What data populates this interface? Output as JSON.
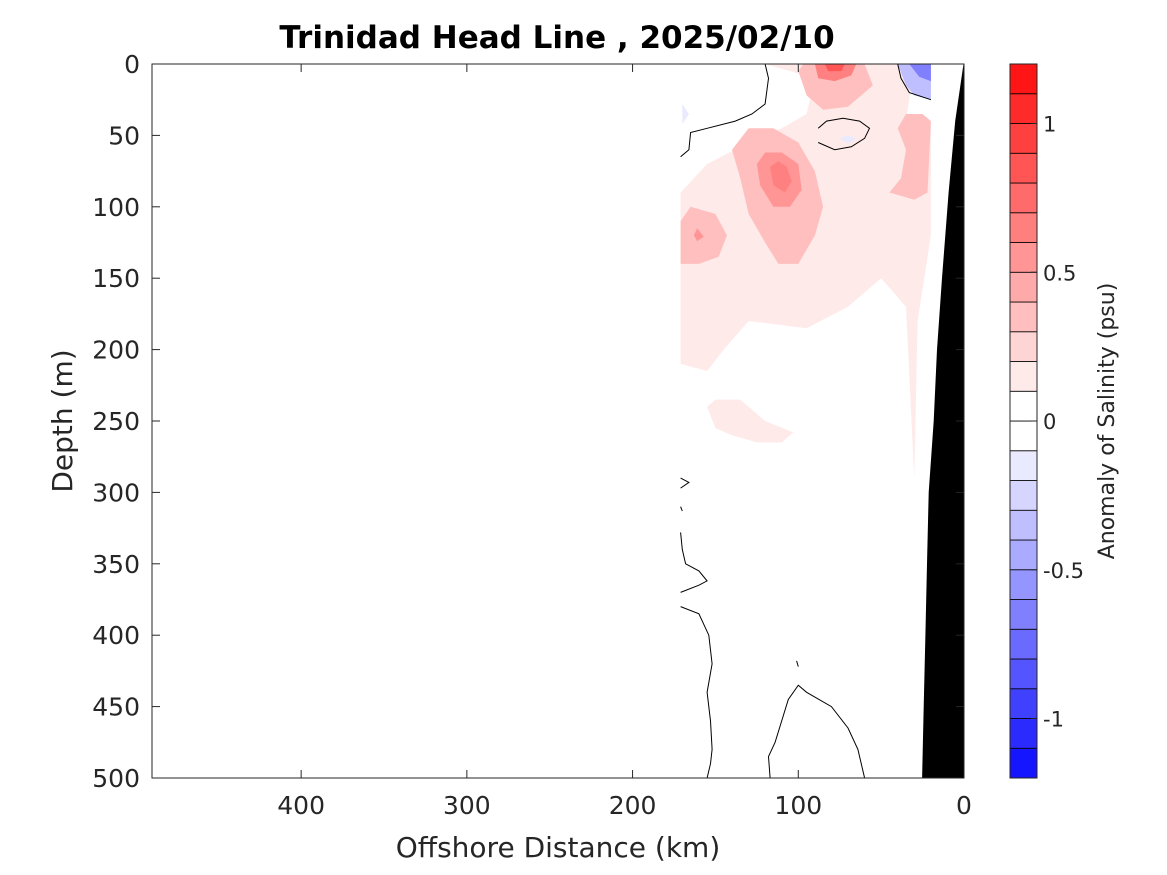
{
  "chart_data": {
    "type": "contour",
    "title": "Trinidad Head Line , 2025/02/10",
    "xlabel": "Offshore Distance (km)",
    "ylabel": "Depth (m)",
    "xlim": [
      490,
      0
    ],
    "ylim": [
      0,
      500
    ],
    "x_reversed": true,
    "y_reversed": true,
    "x_ticks": [
      {
        "value": 400,
        "label": "400"
      },
      {
        "value": 300,
        "label": "300"
      },
      {
        "value": 200,
        "label": "200"
      },
      {
        "value": 100,
        "label": "100"
      },
      {
        "value": 0,
        "label": "0"
      }
    ],
    "y_ticks": [
      {
        "value": 0,
        "label": "0"
      },
      {
        "value": 50,
        "label": "50"
      },
      {
        "value": 100,
        "label": "100"
      },
      {
        "value": 150,
        "label": "150"
      },
      {
        "value": 200,
        "label": "200"
      },
      {
        "value": 250,
        "label": "250"
      },
      {
        "value": 300,
        "label": "300"
      },
      {
        "value": 350,
        "label": "350"
      },
      {
        "value": 400,
        "label": "400"
      },
      {
        "value": 450,
        "label": "450"
      },
      {
        "value": 500,
        "label": "500"
      }
    ],
    "colorbar": {
      "label": "Anomaly of Salinity (psu)",
      "range": [
        -1.2,
        1.2
      ],
      "level_step": 0.1,
      "ticks": [
        {
          "value": 1,
          "label": "1"
        },
        {
          "value": 0.5,
          "label": "0.5"
        },
        {
          "value": 0,
          "label": "0"
        },
        {
          "value": -0.5,
          "label": "-0.5"
        },
        {
          "value": -1,
          "label": "-1"
        }
      ],
      "colormap": "blue-white-red"
    },
    "filled_regions": [
      {
        "name": "shelf-positive",
        "level": 0.1,
        "points": [
          [
            171,
            185
          ],
          [
            171,
            90
          ],
          [
            155,
            70
          ],
          [
            130,
            55
          ],
          [
            110,
            45
          ],
          [
            95,
            35
          ],
          [
            90,
            10
          ],
          [
            120,
            0
          ],
          [
            30,
            0
          ],
          [
            35,
            40
          ],
          [
            20,
            40
          ],
          [
            20,
            120
          ],
          [
            28,
            180
          ],
          [
            30,
            290
          ],
          [
            35,
            170
          ],
          [
            50,
            150
          ],
          [
            70,
            170
          ],
          [
            95,
            185
          ],
          [
            130,
            180
          ],
          [
            145,
            200
          ],
          [
            155,
            215
          ],
          [
            171,
            210
          ]
        ]
      },
      {
        "name": "deep-positive-lens",
        "level": 0.1,
        "points": [
          [
            155,
            240
          ],
          [
            150,
            255
          ],
          [
            140,
            260
          ],
          [
            125,
            265
          ],
          [
            110,
            265
          ],
          [
            103,
            258
          ],
          [
            120,
            250
          ],
          [
            125,
            245
          ],
          [
            135,
            235
          ],
          [
            150,
            235
          ]
        ]
      },
      {
        "name": "near-surface-core",
        "level": 0.3,
        "points": [
          [
            100,
            5
          ],
          [
            97,
            0
          ],
          [
            60,
            0
          ],
          [
            55,
            15
          ],
          [
            70,
            30
          ],
          [
            85,
            32
          ],
          [
            95,
            22
          ]
        ]
      },
      {
        "name": "near-surface-core-inner",
        "level": 0.6,
        "points": [
          [
            88,
            10
          ],
          [
            90,
            0
          ],
          [
            65,
            0
          ],
          [
            68,
            8
          ],
          [
            78,
            12
          ]
        ]
      },
      {
        "name": "near-surface-core-max",
        "level": 0.8,
        "points": [
          [
            82,
            5
          ],
          [
            84,
            0
          ],
          [
            72,
            0
          ],
          [
            74,
            5
          ]
        ]
      },
      {
        "name": "mid-core",
        "level": 0.3,
        "points": [
          [
            140,
            60
          ],
          [
            135,
            80
          ],
          [
            130,
            105
          ],
          [
            120,
            125
          ],
          [
            112,
            140
          ],
          [
            100,
            140
          ],
          [
            90,
            120
          ],
          [
            85,
            100
          ],
          [
            90,
            75
          ],
          [
            100,
            55
          ],
          [
            115,
            45
          ],
          [
            130,
            45
          ]
        ]
      },
      {
        "name": "mid-core-inner",
        "level": 0.5,
        "points": [
          [
            125,
            70
          ],
          [
            123,
            85
          ],
          [
            115,
            100
          ],
          [
            105,
            100
          ],
          [
            98,
            88
          ],
          [
            100,
            70
          ],
          [
            110,
            62
          ],
          [
            120,
            62
          ]
        ]
      },
      {
        "name": "mid-core-max",
        "level": 0.6,
        "points": [
          [
            117,
            72
          ],
          [
            115,
            85
          ],
          [
            108,
            90
          ],
          [
            104,
            82
          ],
          [
            107,
            72
          ],
          [
            112,
            68
          ]
        ]
      },
      {
        "name": "west-lobe",
        "level": 0.3,
        "points": [
          [
            171,
            110
          ],
          [
            165,
            100
          ],
          [
            150,
            105
          ],
          [
            143,
            120
          ],
          [
            148,
            135
          ],
          [
            160,
            140
          ],
          [
            171,
            140
          ]
        ]
      },
      {
        "name": "west-lobe-inner",
        "level": 0.5,
        "points": [
          [
            163,
            120
          ],
          [
            161,
            115
          ],
          [
            157,
            121
          ],
          [
            161,
            124
          ]
        ]
      },
      {
        "name": "east-lobe",
        "level": 0.3,
        "points": [
          [
            40,
            45
          ],
          [
            35,
            60
          ],
          [
            38,
            80
          ],
          [
            45,
            90
          ],
          [
            30,
            95
          ],
          [
            22,
            90
          ],
          [
            20,
            40
          ],
          [
            25,
            35
          ],
          [
            35,
            35
          ]
        ]
      },
      {
        "name": "surface-negative-coastal",
        "level": -0.3,
        "points": [
          [
            40,
            0
          ],
          [
            20,
            0
          ],
          [
            20,
            25
          ],
          [
            30,
            22
          ],
          [
            35,
            15
          ]
        ]
      },
      {
        "name": "surface-negative-coastal-inner",
        "level": -0.6,
        "points": [
          [
            33,
            0
          ],
          [
            20,
            0
          ],
          [
            20,
            12
          ],
          [
            27,
            9
          ]
        ]
      },
      {
        "name": "pocket-negative-50m",
        "level": -0.1,
        "points": [
          [
            75,
            52
          ],
          [
            70,
            50
          ],
          [
            65,
            52
          ],
          [
            70,
            56
          ]
        ]
      },
      {
        "name": "pocket-negative-west",
        "level": -0.1,
        "points": [
          [
            170,
            28
          ],
          [
            166,
            35
          ],
          [
            170,
            42
          ]
        ]
      }
    ],
    "zero_contours": [
      {
        "name": "contour-shelf-edge",
        "points": [
          [
            171,
            65
          ],
          [
            166,
            60
          ],
          [
            165,
            48
          ],
          [
            155,
            45
          ],
          [
            138,
            40
          ],
          [
            128,
            35
          ],
          [
            120,
            28
          ],
          [
            118,
            10
          ],
          [
            120,
            0
          ]
        ]
      },
      {
        "name": "contour-coastal-negative",
        "points": [
          [
            40,
            0
          ],
          [
            38,
            10
          ],
          [
            33,
            20
          ],
          [
            20,
            25
          ]
        ]
      },
      {
        "name": "contour-ring-50m",
        "points": [
          [
            88,
            45
          ],
          [
            83,
            40
          ],
          [
            73,
            38
          ],
          [
            63,
            40
          ],
          [
            57,
            45
          ],
          [
            60,
            52
          ],
          [
            68,
            58
          ],
          [
            78,
            60
          ],
          [
            88,
            55
          ]
        ]
      },
      {
        "name": "contour-tick-300",
        "points": [
          [
            171,
            290
          ],
          [
            166,
            293
          ],
          [
            171,
            297
          ]
        ]
      },
      {
        "name": "contour-dot-310",
        "points": [
          [
            171,
            310
          ],
          [
            170,
            313
          ]
        ]
      },
      {
        "name": "contour-deep-west",
        "points": [
          [
            171,
            328
          ],
          [
            170,
            340
          ],
          [
            168,
            350
          ],
          [
            160,
            355
          ],
          [
            155,
            362
          ],
          [
            160,
            365
          ],
          [
            171,
            370
          ]
        ]
      },
      {
        "name": "contour-deep-lower",
        "points": [
          [
            171,
            380
          ],
          [
            160,
            385
          ],
          [
            154,
            400
          ],
          [
            152,
            420
          ],
          [
            155,
            440
          ],
          [
            153,
            460
          ],
          [
            152,
            480
          ],
          [
            153,
            490
          ],
          [
            155,
            500
          ]
        ]
      },
      {
        "name": "contour-deep-mound",
        "points": [
          [
            117,
            500
          ],
          [
            118,
            485
          ],
          [
            114,
            475
          ],
          [
            110,
            460
          ],
          [
            106,
            445
          ],
          [
            100,
            435
          ],
          [
            95,
            440
          ],
          [
            80,
            450
          ],
          [
            70,
            465
          ],
          [
            64,
            480
          ],
          [
            60,
            500
          ]
        ]
      },
      {
        "name": "contour-dot-420",
        "points": [
          [
            101,
            418
          ],
          [
            100,
            422
          ]
        ]
      }
    ],
    "land_mask": [
      [
        0,
        0
      ],
      [
        24,
        500
      ],
      [
        0,
        500
      ]
    ],
    "land_edge": [
      [
        0,
        0
      ],
      [
        5,
        40
      ],
      [
        9,
        90
      ],
      [
        13,
        150
      ],
      [
        16,
        200
      ],
      [
        18,
        250
      ],
      [
        21,
        300
      ],
      [
        22,
        350
      ],
      [
        23,
        400
      ],
      [
        24,
        450
      ],
      [
        25,
        500
      ],
      [
        0,
        500
      ]
    ],
    "surface_band_end_km": 21
  }
}
